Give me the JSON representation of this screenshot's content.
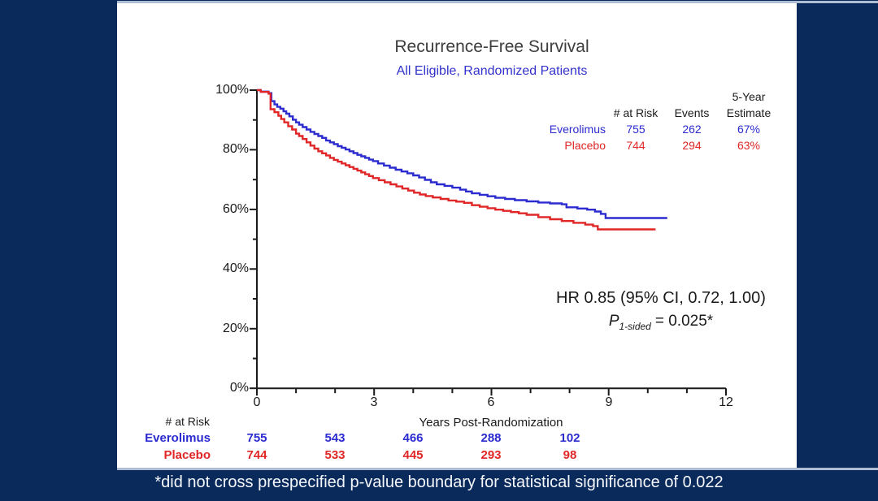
{
  "chart_data": {
    "type": "line",
    "chart_kind": "kaplan-meier-step-curves",
    "title": "Recurrence-Free Survival",
    "subtitle": "All Eligible, Randomized Patients",
    "xlabel": "Years Post-Randomization",
    "ylabel": "",
    "xlim": [
      0,
      12
    ],
    "ylim": [
      0,
      100
    ],
    "x_ticks": [
      0,
      3,
      6,
      9,
      12
    ],
    "x_tick_labels": [
      "0",
      "3",
      "6",
      "9",
      "12"
    ],
    "x_minor_tick_step": 1,
    "y_ticks": [
      0,
      20,
      40,
      60,
      80,
      100
    ],
    "y_tick_labels": [
      "0%",
      "20%",
      "40%",
      "60%",
      "80%",
      "100%"
    ],
    "y_minor_tick_step": 10,
    "grid": "off",
    "legend_position": "none",
    "series": [
      {
        "name": "Everolimus",
        "color": "#2b2bd0",
        "end_x": 10.5,
        "points": [
          [
            0,
            100
          ],
          [
            0.1,
            99.5
          ],
          [
            0.3,
            99
          ],
          [
            0.37,
            96.3
          ],
          [
            0.45,
            95.2
          ],
          [
            0.52,
            94.4
          ],
          [
            0.6,
            93.8
          ],
          [
            0.68,
            92.9
          ],
          [
            0.75,
            92.1
          ],
          [
            0.83,
            91.2
          ],
          [
            0.92,
            90.1
          ],
          [
            1,
            89.2
          ],
          [
            1.08,
            88.4
          ],
          [
            1.17,
            87.6
          ],
          [
            1.27,
            86.8
          ],
          [
            1.37,
            86
          ],
          [
            1.47,
            85.3
          ],
          [
            1.57,
            84.6
          ],
          [
            1.67,
            84
          ],
          [
            1.77,
            83.1
          ],
          [
            1.87,
            82.5
          ],
          [
            1.97,
            81.9
          ],
          [
            2.07,
            81.2
          ],
          [
            2.17,
            80.7
          ],
          [
            2.27,
            80.1
          ],
          [
            2.37,
            79.5
          ],
          [
            2.47,
            78.9
          ],
          [
            2.57,
            78.3
          ],
          [
            2.67,
            77.8
          ],
          [
            2.77,
            77.3
          ],
          [
            2.87,
            76.7
          ],
          [
            2.97,
            76.2
          ],
          [
            3.1,
            75.4
          ],
          [
            3.25,
            74.7
          ],
          [
            3.4,
            74
          ],
          [
            3.55,
            73.3
          ],
          [
            3.7,
            72.7
          ],
          [
            3.85,
            72.1
          ],
          [
            4,
            71.4
          ],
          [
            4.15,
            70.7
          ],
          [
            4.3,
            69.9
          ],
          [
            4.45,
            69.1
          ],
          [
            4.6,
            68.4
          ],
          [
            4.8,
            67.9
          ],
          [
            5,
            67.3
          ],
          [
            5.2,
            66.6
          ],
          [
            5.35,
            66
          ],
          [
            5.5,
            65.4
          ],
          [
            5.7,
            64.9
          ],
          [
            5.9,
            64.4
          ],
          [
            6.1,
            63.9
          ],
          [
            6.35,
            63.5
          ],
          [
            6.6,
            63.1
          ],
          [
            6.9,
            62.7
          ],
          [
            7.2,
            62.3
          ],
          [
            7.5,
            62
          ],
          [
            7.8,
            61.7
          ],
          [
            7.92,
            60.7
          ],
          [
            8.2,
            60.3
          ],
          [
            8.45,
            59.9
          ],
          [
            8.65,
            59.3
          ],
          [
            8.8,
            58.5
          ],
          [
            8.92,
            57.1
          ]
        ]
      },
      {
        "name": "Placebo",
        "color": "#e02626",
        "end_x": 10.2,
        "points": [
          [
            0,
            100
          ],
          [
            0.1,
            99.4
          ],
          [
            0.3,
            98.8
          ],
          [
            0.35,
            93.6
          ],
          [
            0.45,
            92.6
          ],
          [
            0.55,
            91.4
          ],
          [
            0.62,
            90.3
          ],
          [
            0.7,
            89.2
          ],
          [
            0.8,
            87.9
          ],
          [
            0.9,
            86.8
          ],
          [
            1,
            85.4
          ],
          [
            1.08,
            84.6
          ],
          [
            1.17,
            83.6
          ],
          [
            1.27,
            82.5
          ],
          [
            1.37,
            81.4
          ],
          [
            1.47,
            80.4
          ],
          [
            1.57,
            79.5
          ],
          [
            1.67,
            78.8
          ],
          [
            1.77,
            78.1
          ],
          [
            1.87,
            77.3
          ],
          [
            1.97,
            76.6
          ],
          [
            2.07,
            76
          ],
          [
            2.17,
            75.4
          ],
          [
            2.27,
            74.8
          ],
          [
            2.37,
            74.2
          ],
          [
            2.47,
            73.6
          ],
          [
            2.57,
            73
          ],
          [
            2.67,
            72.4
          ],
          [
            2.77,
            71.8
          ],
          [
            2.87,
            71.2
          ],
          [
            2.97,
            70.5
          ],
          [
            3.12,
            69.8
          ],
          [
            3.27,
            69.1
          ],
          [
            3.42,
            68.4
          ],
          [
            3.57,
            67.7
          ],
          [
            3.72,
            67
          ],
          [
            3.87,
            66.3
          ],
          [
            4.02,
            65.6
          ],
          [
            4.17,
            65
          ],
          [
            4.32,
            64.5
          ],
          [
            4.5,
            64
          ],
          [
            4.7,
            63.5
          ],
          [
            4.9,
            63
          ],
          [
            5.1,
            62.6
          ],
          [
            5.3,
            62.2
          ],
          [
            5.5,
            61.4
          ],
          [
            5.7,
            60.9
          ],
          [
            5.9,
            60.4
          ],
          [
            6.1,
            59.9
          ],
          [
            6.3,
            59.5
          ],
          [
            6.5,
            59.1
          ],
          [
            6.7,
            58.7
          ],
          [
            6.9,
            58.2
          ],
          [
            7.2,
            57.4
          ],
          [
            7.5,
            56.7
          ],
          [
            7.8,
            56.1
          ],
          [
            8.1,
            55.5
          ],
          [
            8.4,
            54.9
          ],
          [
            8.6,
            54.4
          ],
          [
            8.72,
            53.3
          ]
        ]
      }
    ],
    "summary_table": {
      "headers": {
        "at_risk": "# at Risk",
        "events": "Events",
        "estimate_line1": "5-Year",
        "estimate_line2": "Estimate"
      },
      "rows": [
        {
          "name": "Everolimus",
          "at_risk": "755",
          "events": "262",
          "estimate": "67%"
        },
        {
          "name": "Placebo",
          "at_risk": "744",
          "events": "294",
          "estimate": "63%"
        }
      ]
    },
    "annotation": {
      "hr_line": "HR 0.85 (95% CI, 0.72, 1.00)",
      "p_symbol": "P",
      "p_subscript": "1-sided",
      "p_rest": "= 0.025*"
    },
    "risk_table": {
      "label": "# at Risk",
      "years": [
        0,
        2,
        4,
        6,
        8
      ],
      "rows": [
        {
          "name": "Everolimus",
          "values": [
            "755",
            "543",
            "466",
            "288",
            "102"
          ]
        },
        {
          "name": "Placebo",
          "values": [
            "744",
            "533",
            "445",
            "293",
            "98"
          ]
        }
      ]
    }
  },
  "footnote": "*did not cross prespecified p-value boundary for statistical significance of 0.022",
  "colors": {
    "background": "#0a2a5c",
    "panel": "#ffffff",
    "border_strip": "#aebdd1",
    "everolimus_blue": "#2b2bd0",
    "placebo_red": "#e02626",
    "axis_black": "#1a1a1a",
    "title_gray": "#3d3d3d"
  }
}
